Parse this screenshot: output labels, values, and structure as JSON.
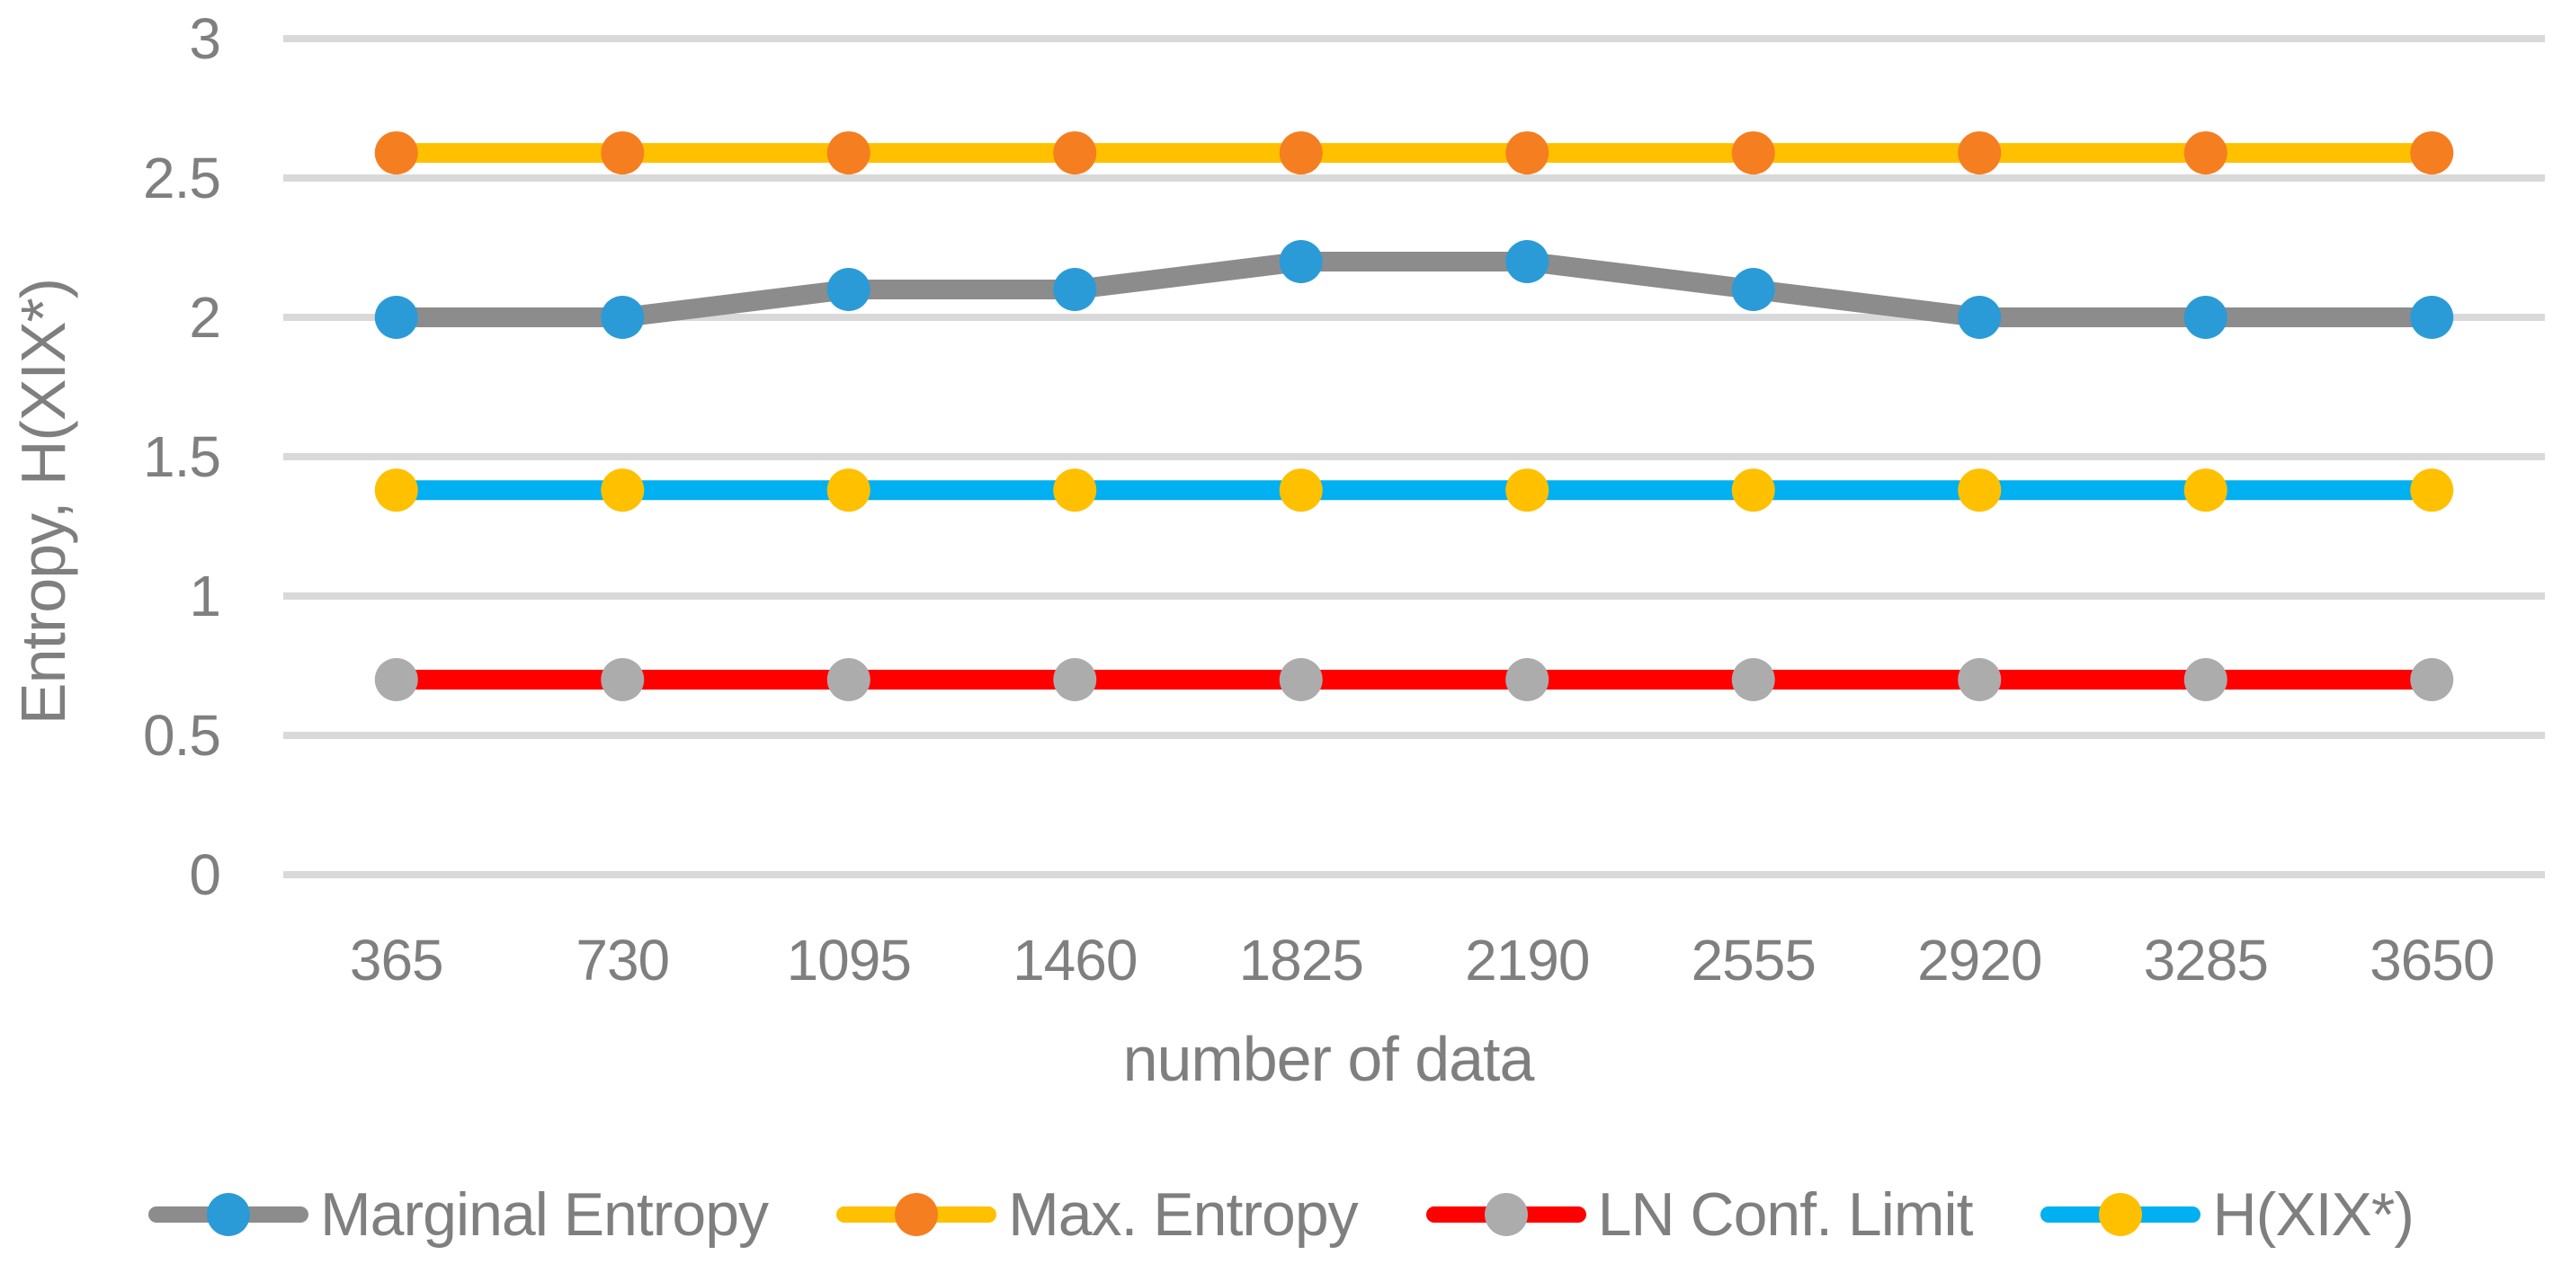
{
  "figure": {
    "background_color": "#FFFFFF",
    "text_color": "#7F7F7F",
    "gridline_color": "#D9D9D9"
  },
  "chart_data": {
    "type": "line",
    "title": "",
    "xlabel": "number of data",
    "ylabel": "Entropy, H(XIX*)",
    "categories": [
      "365",
      "730",
      "1095",
      "1460",
      "1825",
      "2190",
      "2555",
      "2920",
      "3285",
      "3650"
    ],
    "y_ticks": [
      "0",
      "0.5",
      "1",
      "1.5",
      "2",
      "2.5",
      "3"
    ],
    "ylim": [
      0,
      3
    ],
    "grid": "horizontal",
    "legend_position": "bottom",
    "series": [
      {
        "name": "Marginal Entropy",
        "values": [
          2.0,
          2.0,
          2.1,
          2.1,
          2.2,
          2.2,
          2.1,
          2.0,
          2.0,
          2.0
        ],
        "line_color": "#8C8C8C",
        "marker_color": "#2B9BD7"
      },
      {
        "name": "Max. Entropy",
        "values": [
          2.59,
          2.59,
          2.59,
          2.59,
          2.59,
          2.59,
          2.59,
          2.59,
          2.59,
          2.59
        ],
        "line_color": "#FFC000",
        "marker_color": "#F57E20"
      },
      {
        "name": "LN Conf. Limit",
        "values": [
          0.7,
          0.7,
          0.7,
          0.7,
          0.7,
          0.7,
          0.7,
          0.7,
          0.7,
          0.7
        ],
        "line_color": "#FE0000",
        "marker_color": "#ACACAC"
      },
      {
        "name": "H(XIX*)",
        "values": [
          1.38,
          1.38,
          1.38,
          1.38,
          1.38,
          1.38,
          1.38,
          1.38,
          1.38,
          1.38
        ],
        "line_color": "#00B0F0",
        "marker_color": "#FFC000"
      }
    ]
  }
}
